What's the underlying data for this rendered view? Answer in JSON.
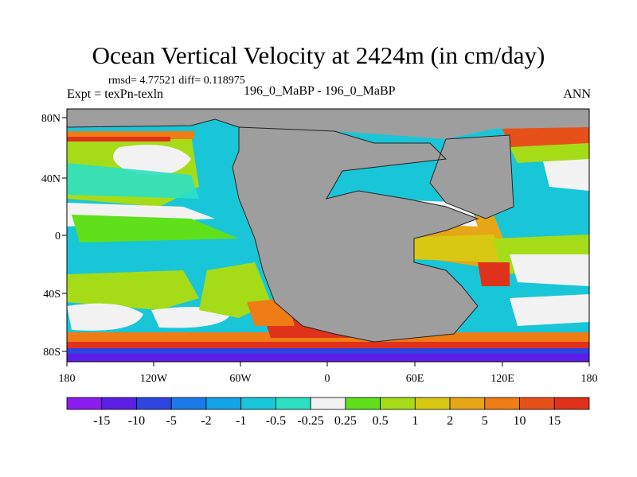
{
  "header": {
    "title": "Ocean Vertical Velocity at 2424m (in cm/day)",
    "stats": "rmsd= 4.77521 diff= 0.118975",
    "experiment": "Expt = texPn-texln",
    "case_label": "196_0_MaBP - 196_0_MaBP",
    "season": "ANN"
  },
  "axes": {
    "y_ticks": [
      "80N",
      "40N",
      "0",
      "40S",
      "80S"
    ],
    "x_ticks": [
      "180",
      "120W",
      "60W",
      "0",
      "60E",
      "120E",
      "180"
    ]
  },
  "colorbar": {
    "labels": [
      "-15",
      "-10",
      "-5",
      "-2",
      "-1",
      "-0.5",
      "-0.25",
      "0.25",
      "0.5",
      "1",
      "2",
      "5",
      "10",
      "15"
    ],
    "colors": [
      "#8a1cf0",
      "#5b1ee6",
      "#2f45e0",
      "#1a7ae8",
      "#14a3e6",
      "#19c6d8",
      "#2ee0c3",
      "#f2f2f2",
      "#5fe01b",
      "#a6dc17",
      "#d8c814",
      "#e6a616",
      "#ef7c14",
      "#e8501a",
      "#e0321a"
    ]
  },
  "map": {
    "land_color": "#9e9e9e",
    "ocean_base_color": "#19c6d8"
  }
}
